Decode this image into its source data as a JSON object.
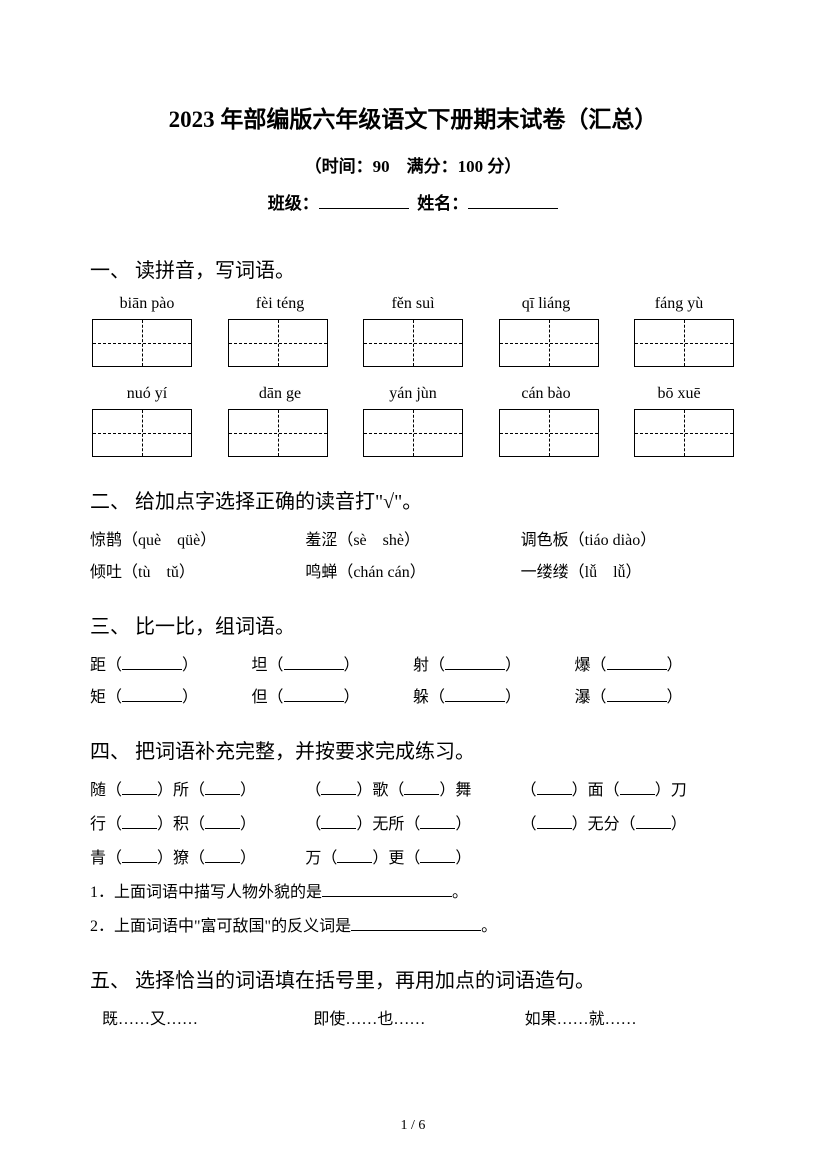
{
  "title": "2023 年部编版六年级语文下册期末试卷（汇总）",
  "subtitle": "（时间：90　满分：100 分）",
  "classLabel": "班级：",
  "nameLabel": "姓名：",
  "section1": {
    "heading": "一、 读拼音，写词语。",
    "row1": [
      "biān pào",
      "fèi téng",
      "fěn suì",
      "qī liáng",
      "fáng yù"
    ],
    "row2": [
      "nuó yí",
      "dān ge",
      "yán jùn",
      "cán bào",
      "bō xuē"
    ]
  },
  "section2": {
    "heading": "二、 给加点字选择正确的读音打\"√\"。",
    "rows": [
      [
        "惊鹊（què　qüè）",
        "羞涩（sè　shè）",
        "调色板（tiáo diào）"
      ],
      [
        "倾吐（tù　tǔ）",
        "鸣蝉（chán cán）",
        "一缕缕（lǚ　lǚ）"
      ]
    ]
  },
  "section3": {
    "heading": "三、 比一比，组词语。",
    "rows": [
      [
        "距（",
        "坦（",
        "射（",
        "爆（"
      ],
      [
        "矩（",
        "但（",
        "躲（",
        "瀑（"
      ]
    ],
    "close": "）"
  },
  "section4": {
    "heading": "四、 把词语补充完整，并按要求完成练习。",
    "items": [
      [
        "随（",
        "）所（",
        "）",
        "（",
        "）歌（",
        "）舞",
        "（",
        "）面（",
        "）刀"
      ],
      [
        "行（",
        "）积（",
        "）",
        "（",
        "）无所（",
        "）",
        "（",
        "）无分（",
        "）"
      ],
      [
        "青（",
        "）獠（",
        "）",
        "万（",
        "）更（",
        "）",
        ""
      ]
    ],
    "sub1": "1．上面词语中描写人物外貌的是",
    "sub1end": "。",
    "sub2": "2．上面词语中\"富可敌国\"的反义词是",
    "sub2end": "。"
  },
  "section5": {
    "heading": "五、 选择恰当的词语填在括号里，再用加点的词语造句。",
    "options": [
      "既……又……",
      "即使……也……",
      "如果……就……"
    ]
  },
  "pageNum": "1 / 6"
}
